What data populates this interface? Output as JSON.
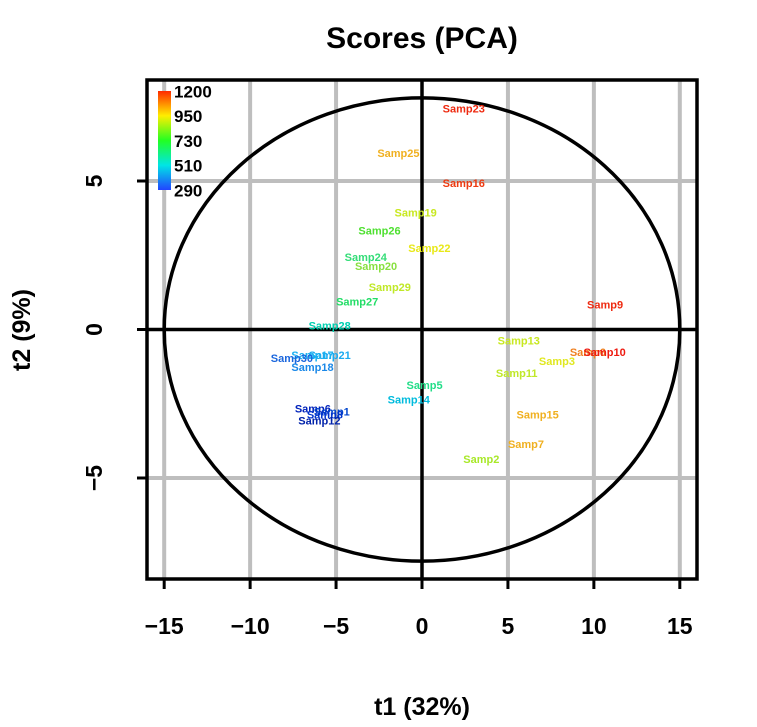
{
  "chart_data": {
    "type": "scatter",
    "title": "Scores (PCA)",
    "xlabel": "t1 (32%)",
    "ylabel": "t2 (9%)",
    "xlim": [
      -16,
      16
    ],
    "ylim": [
      -8.4,
      8.4
    ],
    "xticks": [
      -15,
      -10,
      -5,
      0,
      5,
      10,
      15
    ],
    "yticks": [
      -5,
      0,
      5
    ],
    "xtick_labels": [
      "−15",
      "−10",
      "−5",
      "0",
      "5",
      "10",
      "15"
    ],
    "ytick_labels": [
      "−5",
      "0",
      "5"
    ],
    "grid": true,
    "ellipse": {
      "rx": 15,
      "ry": 7.8
    },
    "legend": {
      "placement": "top-left",
      "values": [
        "1200",
        "950",
        "730",
        "510",
        "290"
      ],
      "colors": [
        "#ff2a00",
        "#ffee00",
        "#22ff22",
        "#00e5e5",
        "#2244ff"
      ]
    },
    "points": [
      {
        "label": "Samp23",
        "x": 1.2,
        "y": 7.4,
        "color": "#ee2a10"
      },
      {
        "label": "Samp25",
        "x": -2.6,
        "y": 5.9,
        "color": "#f0b020"
      },
      {
        "label": "Samp16",
        "x": 1.2,
        "y": 4.9,
        "color": "#ee3a10"
      },
      {
        "label": "Samp19",
        "x": -1.6,
        "y": 3.9,
        "color": "#c8e820"
      },
      {
        "label": "Samp26",
        "x": -3.7,
        "y": 3.3,
        "color": "#4ee030"
      },
      {
        "label": "Samp22",
        "x": -0.8,
        "y": 2.7,
        "color": "#e8e818"
      },
      {
        "label": "Samp24",
        "x": -4.5,
        "y": 2.4,
        "color": "#33dd77"
      },
      {
        "label": "Samp20",
        "x": -3.9,
        "y": 2.1,
        "color": "#88e040"
      },
      {
        "label": "Samp29",
        "x": -3.1,
        "y": 1.4,
        "color": "#c0e828"
      },
      {
        "label": "Samp27",
        "x": -5.0,
        "y": 0.9,
        "color": "#22dd66"
      },
      {
        "label": "Samp9",
        "x": 9.6,
        "y": 0.8,
        "color": "#ee2a10"
      },
      {
        "label": "Samp28",
        "x": -6.6,
        "y": 0.1,
        "color": "#00d0b0"
      },
      {
        "label": "Samp13",
        "x": 4.4,
        "y": -0.4,
        "color": "#c8e820"
      },
      {
        "label": "Samp6",
        "x": 8.6,
        "y": -0.8,
        "color": "#f08020"
      },
      {
        "label": "Samp10",
        "x": 9.4,
        "y": -0.8,
        "color": "#ee1a10"
      },
      {
        "label": "Samp3",
        "x": 6.8,
        "y": -1.1,
        "color": "#e0e820"
      },
      {
        "label": "Samp21",
        "x": -6.6,
        "y": -0.9,
        "color": "#1aaaf0"
      },
      {
        "label": "Samp17",
        "x": -7.6,
        "y": -0.9,
        "color": "#1ab0f0"
      },
      {
        "label": "Samp30",
        "x": -8.8,
        "y": -1.0,
        "color": "#1a66dd"
      },
      {
        "label": "Samp18",
        "x": -7.6,
        "y": -1.3,
        "color": "#1a88e8"
      },
      {
        "label": "Samp11",
        "x": 4.3,
        "y": -1.5,
        "color": "#c0e828"
      },
      {
        "label": "Samp5",
        "x": -0.9,
        "y": -1.9,
        "color": "#22dd88"
      },
      {
        "label": "Samp14",
        "x": -2.0,
        "y": -2.4,
        "color": "#00bbdd"
      },
      {
        "label": "Samp6",
        "x": -7.4,
        "y": -2.7,
        "color": "#0022bb"
      },
      {
        "label": "Samp1",
        "x": -6.3,
        "y": -2.8,
        "color": "#0044cc"
      },
      {
        "label": "Samp8",
        "x": -6.7,
        "y": -2.9,
        "color": "#0033cc"
      },
      {
        "label": "Samp12",
        "x": -7.2,
        "y": -3.1,
        "color": "#0022aa"
      },
      {
        "label": "Samp15",
        "x": 5.5,
        "y": -2.9,
        "color": "#f0b020"
      },
      {
        "label": "Samp7",
        "x": 5.0,
        "y": -3.9,
        "color": "#f0b020"
      },
      {
        "label": "Samp2",
        "x": 2.4,
        "y": -4.4,
        "color": "#a8e828"
      }
    ]
  }
}
